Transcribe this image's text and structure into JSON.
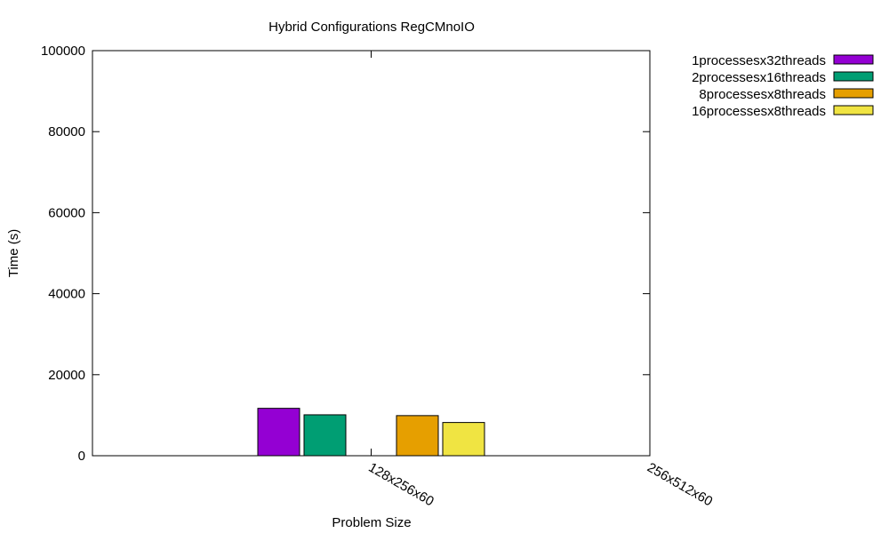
{
  "chart_data": {
    "type": "bar",
    "title": "Hybrid Configurations RegCMnoIO",
    "xlabel": "Problem Size",
    "ylabel": "Time (s)",
    "ylim": [
      0,
      100000
    ],
    "yticks": [
      "0",
      "20000",
      "40000",
      "60000",
      "80000",
      "100000"
    ],
    "categories": [
      "128x256x60",
      "256x512x60"
    ],
    "legend_position": "top-right outside",
    "grid": false,
    "series": [
      {
        "name": "1processesx32threads",
        "color": "#9400d3",
        "values": [
          11700,
          null
        ]
      },
      {
        "name": "2processesx16threads",
        "color": "#009e73",
        "values": [
          10100,
          null
        ]
      },
      {
        "name": "8processesx8threads",
        "color": "#e69f00",
        "values": [
          9900,
          null
        ]
      },
      {
        "name": "16processesx8threads",
        "color": "#f0e442",
        "values": [
          8200,
          null
        ]
      }
    ]
  }
}
